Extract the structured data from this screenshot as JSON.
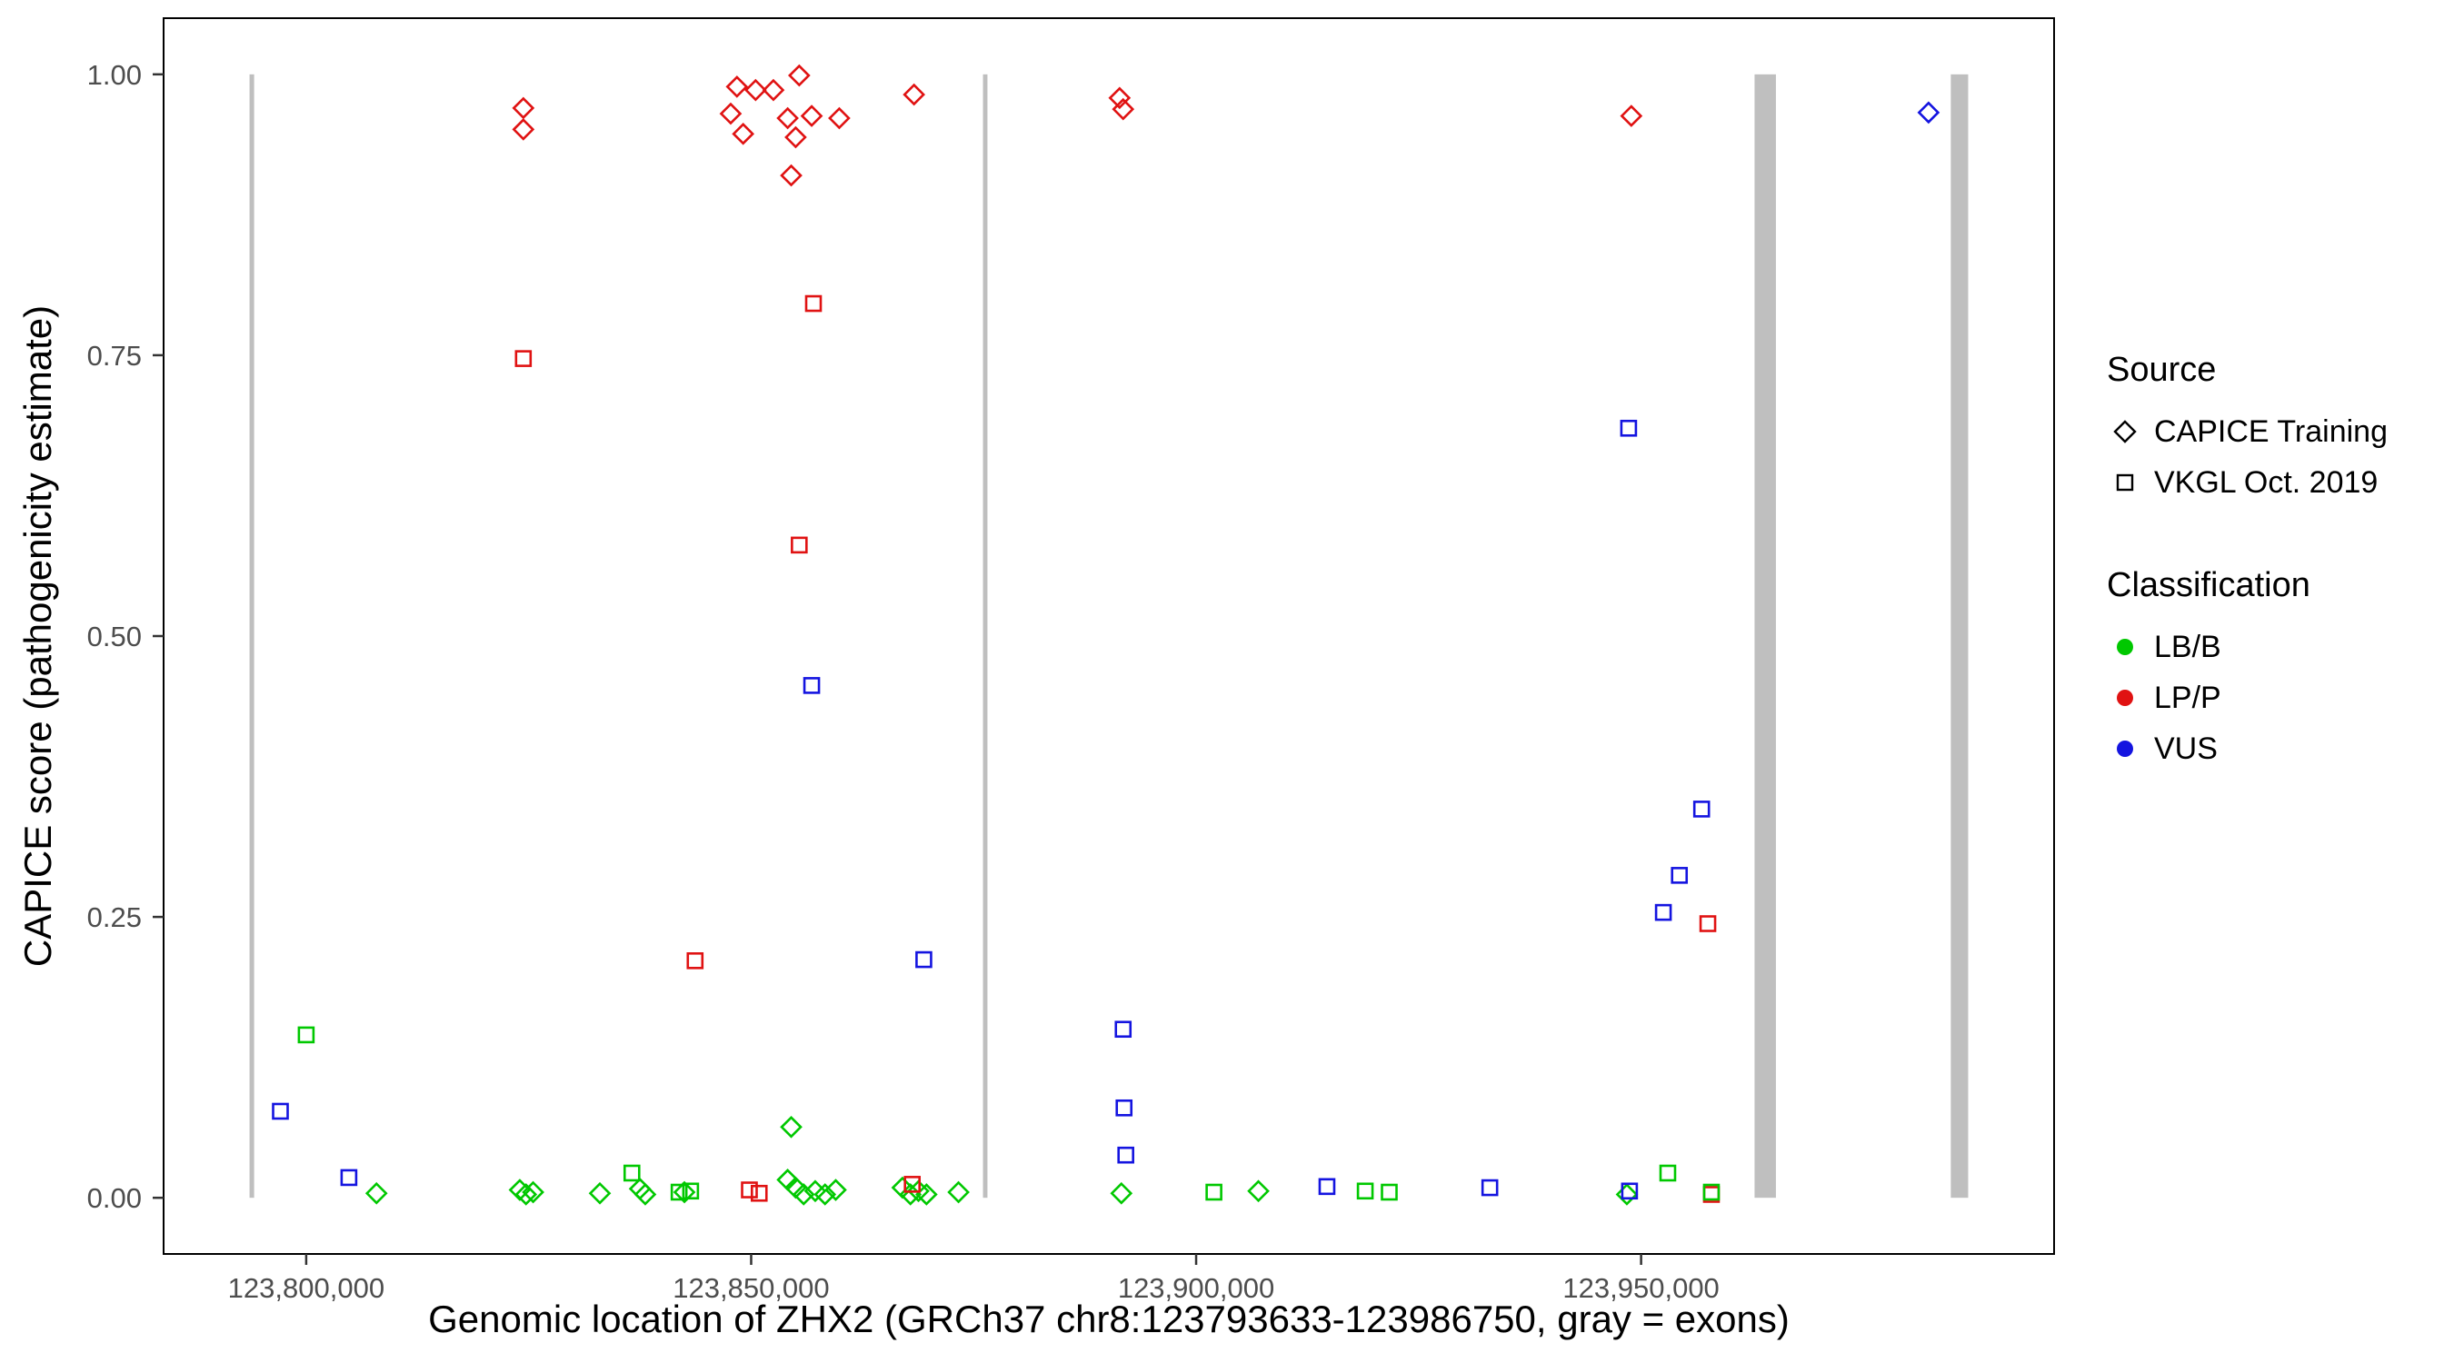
{
  "chart_data": {
    "type": "scatter",
    "title": "",
    "xlabel": "Genomic location of ZHX2 (GRCh37 chr8:123793633-123986750, gray = exons)",
    "ylabel": "CAPICE score (pathogenicity estimate)",
    "xlim": [
      123783977,
      123996406
    ],
    "ylim": [
      -0.05,
      1.05
    ],
    "grid": false,
    "x_ticks": [
      123800000,
      123850000,
      123900000,
      123950000
    ],
    "x_tick_labels": [
      "123,800,000",
      "123,850,000",
      "123,900,000",
      "123,950,000"
    ],
    "y_ticks": [
      0,
      0.25,
      0.5,
      0.75,
      1.0
    ],
    "y_tick_labels": [
      "0.00",
      "0.25",
      "0.50",
      "0.75",
      "1.00"
    ],
    "exon_color": "#BFBFBF",
    "exons": [
      [
        123793633,
        123794150
      ],
      [
        123876050,
        123876550
      ],
      [
        123962750,
        123965150
      ],
      [
        123984800,
        123986750
      ]
    ],
    "legend": {
      "source_title": "Source",
      "source_items": [
        {
          "label": "CAPICE Training",
          "marker": "diamond"
        },
        {
          "label": "VKGL Oct. 2019",
          "marker": "square"
        }
      ],
      "classification_title": "Classification",
      "classification_items": [
        {
          "label": "LB/B",
          "color": "#00C800"
        },
        {
          "label": "LP/P",
          "color": "#E01212"
        },
        {
          "label": "VUS",
          "color": "#1414E0"
        }
      ]
    },
    "series": [
      {
        "name": "CAPICE Training - LP/P",
        "source": "CAPICE Training",
        "classification": "LP/P",
        "marker": "diamond",
        "color": "#E01212",
        "points": [
          [
            123824400,
            0.97
          ],
          [
            123824400,
            0.951
          ],
          [
            123847700,
            0.965
          ],
          [
            123848400,
            0.989
          ],
          [
            123849100,
            0.947
          ],
          [
            123850500,
            0.986
          ],
          [
            123852500,
            0.986
          ],
          [
            123854100,
            0.961
          ],
          [
            123854500,
            0.91
          ],
          [
            123855000,
            0.944
          ],
          [
            123855400,
            0.999
          ],
          [
            123856800,
            0.963
          ],
          [
            123859900,
            0.961
          ],
          [
            123868300,
            0.982
          ],
          [
            123891400,
            0.979
          ],
          [
            123891800,
            0.969
          ],
          [
            123948900,
            0.963
          ]
        ]
      },
      {
        "name": "CAPICE Training - LB/B",
        "source": "CAPICE Training",
        "classification": "LB/B",
        "marker": "diamond",
        "color": "#00C800",
        "points": [
          [
            123807900,
            0.004
          ],
          [
            123824000,
            0.007
          ],
          [
            123824700,
            0.003
          ],
          [
            123825500,
            0.005
          ],
          [
            123833000,
            0.004
          ],
          [
            123837500,
            0.008
          ],
          [
            123838100,
            0.003
          ],
          [
            123842500,
            0.005
          ],
          [
            123854100,
            0.016
          ],
          [
            123854500,
            0.063
          ],
          [
            123855000,
            0.009
          ],
          [
            123855900,
            0.003
          ],
          [
            123857200,
            0.006
          ],
          [
            123858300,
            0.003
          ],
          [
            123859500,
            0.007
          ],
          [
            123867000,
            0.009
          ],
          [
            123867900,
            0.003
          ],
          [
            123868800,
            0.006
          ],
          [
            123869700,
            0.003
          ],
          [
            123873300,
            0.005
          ],
          [
            123891600,
            0.004
          ],
          [
            123907000,
            0.006
          ],
          [
            123948400,
            0.003
          ]
        ]
      },
      {
        "name": "CAPICE Training - VUS",
        "source": "CAPICE Training",
        "classification": "VUS",
        "marker": "diamond",
        "color": "#1414E0",
        "points": [
          [
            123982300,
            0.966
          ]
        ]
      },
      {
        "name": "VKGL Oct. 2019 - LP/P",
        "source": "VKGL Oct. 2019",
        "classification": "LP/P",
        "marker": "square",
        "color": "#E01212",
        "points": [
          [
            123824400,
            0.747
          ],
          [
            123843700,
            0.211
          ],
          [
            123849800,
            0.007
          ],
          [
            123850900,
            0.004
          ],
          [
            123855400,
            0.581
          ],
          [
            123857000,
            0.796
          ],
          [
            123868100,
            0.012
          ],
          [
            123957500,
            0.244
          ],
          [
            123957900,
            0.003
          ]
        ]
      },
      {
        "name": "VKGL Oct. 2019 - LB/B",
        "source": "VKGL Oct. 2019",
        "classification": "LB/B",
        "marker": "square",
        "color": "#00C800",
        "points": [
          [
            123800000,
            0.145
          ],
          [
            123836600,
            0.022
          ],
          [
            123841900,
            0.005
          ],
          [
            123843200,
            0.006
          ],
          [
            123902000,
            0.005
          ],
          [
            123919000,
            0.006
          ],
          [
            123921700,
            0.005
          ],
          [
            123953000,
            0.022
          ],
          [
            123957900,
            0.005
          ]
        ]
      },
      {
        "name": "VKGL Oct. 2019 - VUS",
        "source": "VKGL Oct. 2019",
        "classification": "VUS",
        "marker": "square",
        "color": "#1414E0",
        "points": [
          [
            123797100,
            0.077
          ],
          [
            123804800,
            0.018
          ],
          [
            123856800,
            0.456
          ],
          [
            123869400,
            0.212
          ],
          [
            123891800,
            0.15
          ],
          [
            123891900,
            0.08
          ],
          [
            123892100,
            0.038
          ],
          [
            123914700,
            0.01
          ],
          [
            123933000,
            0.009
          ],
          [
            123948600,
            0.685
          ],
          [
            123948700,
            0.006
          ],
          [
            123952500,
            0.254
          ],
          [
            123954300,
            0.287
          ],
          [
            123956800,
            0.346
          ]
        ]
      }
    ]
  }
}
